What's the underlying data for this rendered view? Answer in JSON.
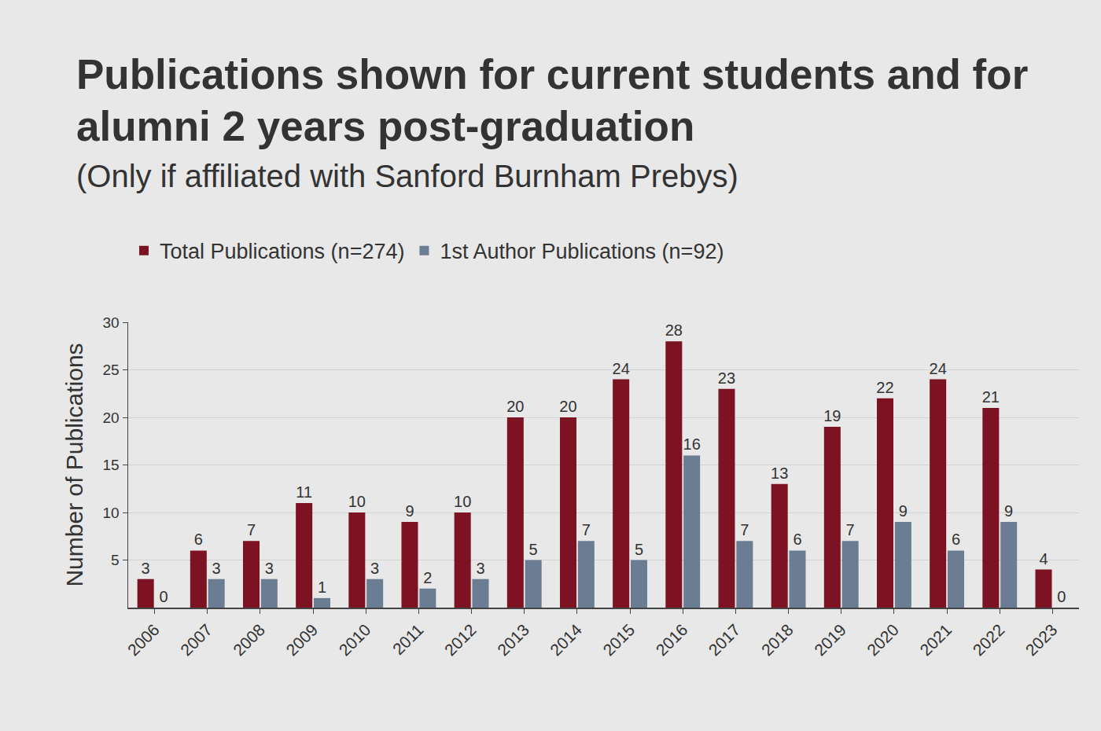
{
  "chart_data": {
    "type": "bar",
    "title": "Publications shown for current students and for alumni 2 years post-graduation",
    "subtitle": "(Only if affiliated with Sanford Burnham Prebys)",
    "y_label": "Number of Publications",
    "categories": [
      "2006",
      "2007",
      "2008",
      "2009",
      "2010",
      "2011",
      "2012",
      "2013",
      "2014",
      "2015",
      "2016",
      "2017",
      "2018",
      "2019",
      "2020",
      "2021",
      "2022",
      "2023"
    ],
    "series": [
      {
        "name": "Total Publications (n=274)",
        "color": "#7d1222",
        "values": [
          3,
          6,
          7,
          11,
          10,
          9,
          10,
          20,
          20,
          24,
          28,
          23,
          13,
          19,
          22,
          24,
          21,
          4
        ]
      },
      {
        "name": "1st Author Publications (n=92)",
        "color": "#6b7d93",
        "values": [
          0,
          3,
          3,
          1,
          3,
          2,
          3,
          5,
          7,
          5,
          16,
          7,
          6,
          7,
          9,
          6,
          9,
          0
        ]
      }
    ],
    "ylim": [
      0,
      30
    ],
    "yticks": [
      5,
      10,
      15,
      20,
      25,
      30
    ],
    "grid": true,
    "legend": "top",
    "data_labels": true
  }
}
